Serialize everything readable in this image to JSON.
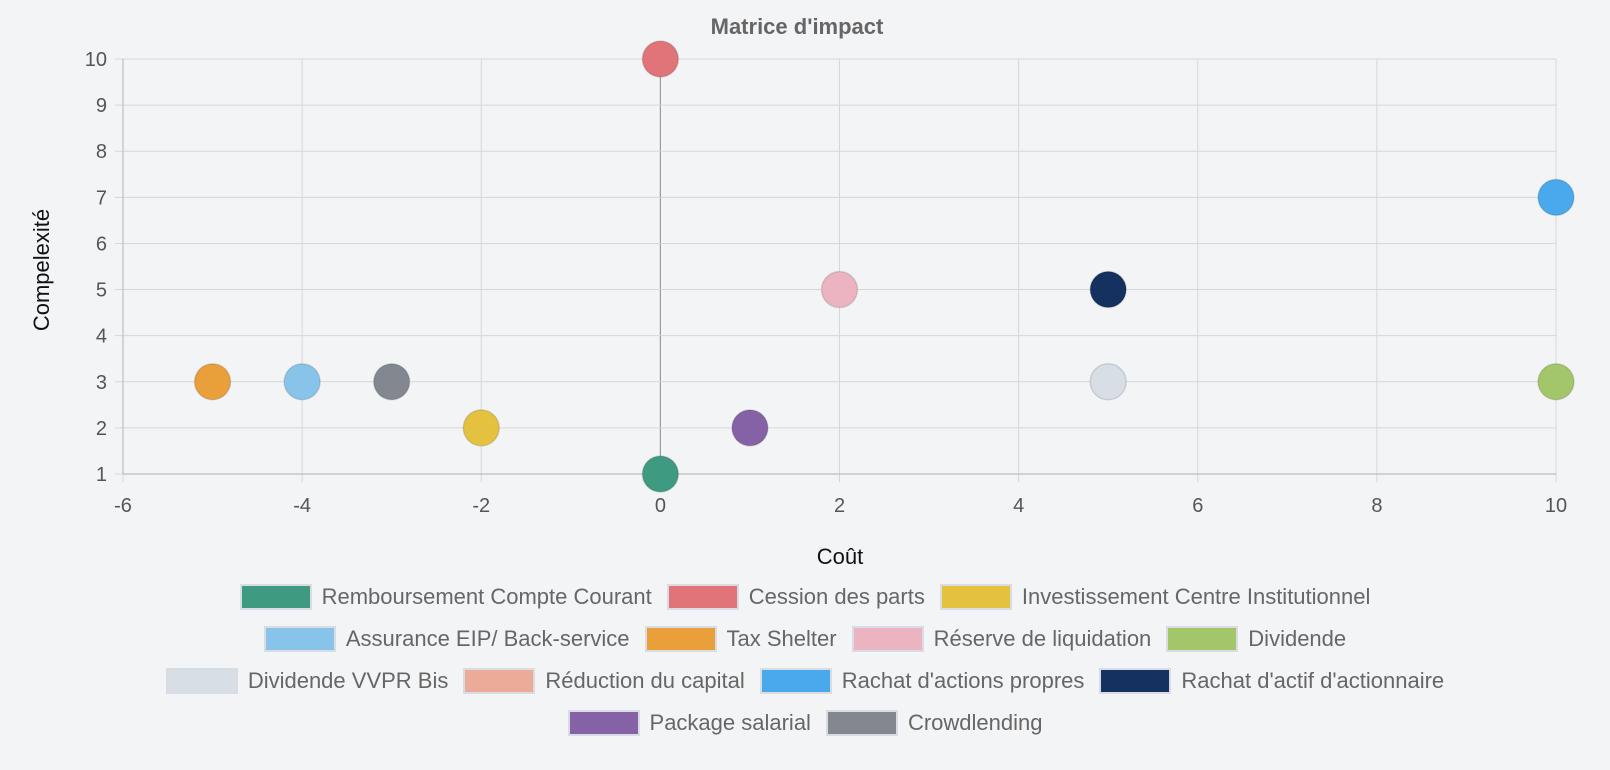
{
  "chart_data": {
    "type": "scatter",
    "title": "Matrice d'impact",
    "xlabel": "Coût",
    "ylabel": "Compelexité",
    "xlim": [
      -6,
      10
    ],
    "ylim": [
      1,
      10
    ],
    "x_ticks": [
      -6,
      -4,
      -2,
      0,
      2,
      4,
      6,
      8,
      10
    ],
    "y_ticks": [
      1,
      2,
      3,
      4,
      5,
      6,
      7,
      8,
      9,
      10
    ],
    "grid": true,
    "legend_position": "bottom",
    "series": [
      {
        "name": "Remboursement Compte Courant",
        "color": "#3f9a82",
        "points": [
          {
            "x": 0,
            "y": 1
          }
        ]
      },
      {
        "name": "Cession des parts",
        "color": "#e07479",
        "points": [
          {
            "x": 0,
            "y": 10
          }
        ]
      },
      {
        "name": "Investissement Centre Institutionnel",
        "color": "#e4c240",
        "points": [
          {
            "x": -2,
            "y": 2
          }
        ]
      },
      {
        "name": "Assurance EIP/ Back-service",
        "color": "#88c4e9",
        "points": [
          {
            "x": -4,
            "y": 3
          }
        ]
      },
      {
        "name": "Tax Shelter",
        "color": "#e9a03b",
        "points": [
          {
            "x": -5,
            "y": 3
          }
        ]
      },
      {
        "name": "Réserve de liquidation",
        "color": "#ecb4c1",
        "points": [
          {
            "x": 2,
            "y": 5
          }
        ]
      },
      {
        "name": "Dividende",
        "color": "#a3c66a",
        "points": [
          {
            "x": 10,
            "y": 3
          }
        ]
      },
      {
        "name": "Dividende VVPR Bis",
        "color": "#d7dee6",
        "points": [
          {
            "x": 5,
            "y": 3
          }
        ]
      },
      {
        "name": "Réduction du capital",
        "color": "#ebab98",
        "points": []
      },
      {
        "name": "Rachat d'actions propres",
        "color": "#4aa9ea",
        "points": [
          {
            "x": 10,
            "y": 7
          }
        ]
      },
      {
        "name": "Rachat d'actif d'actionnaire",
        "color": "#14315f",
        "points": [
          {
            "x": 5,
            "y": 5
          }
        ]
      },
      {
        "name": "Package salarial",
        "color": "#8562a6",
        "points": [
          {
            "x": 1,
            "y": 2
          }
        ]
      },
      {
        "name": "Crowdlending",
        "color": "#838890",
        "points": [
          {
            "x": -3,
            "y": 3
          }
        ]
      }
    ]
  }
}
